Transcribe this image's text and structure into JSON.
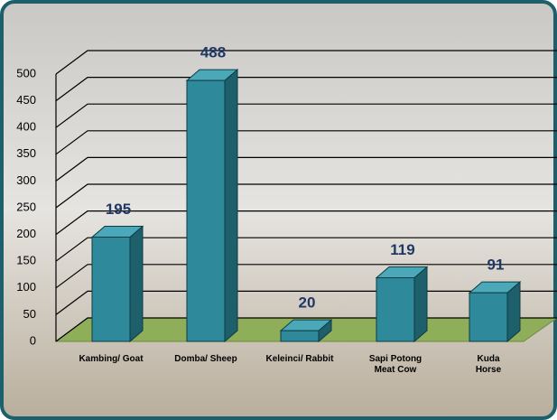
{
  "chart_data": {
    "type": "bar3d",
    "categories": [
      "Kambing/ Goat",
      "Domba/ Sheep",
      "Keleinci/ Rabbit",
      "Sapi Potong\nMeat Cow",
      "Kuda\nHorse"
    ],
    "values": [
      195,
      488,
      20,
      119,
      91
    ],
    "color": "#2e8a9a",
    "ylim": [
      0,
      500
    ],
    "yticks": [
      0,
      50,
      100,
      150,
      200,
      250,
      300,
      350,
      400,
      450,
      500
    ],
    "grid": true
  }
}
